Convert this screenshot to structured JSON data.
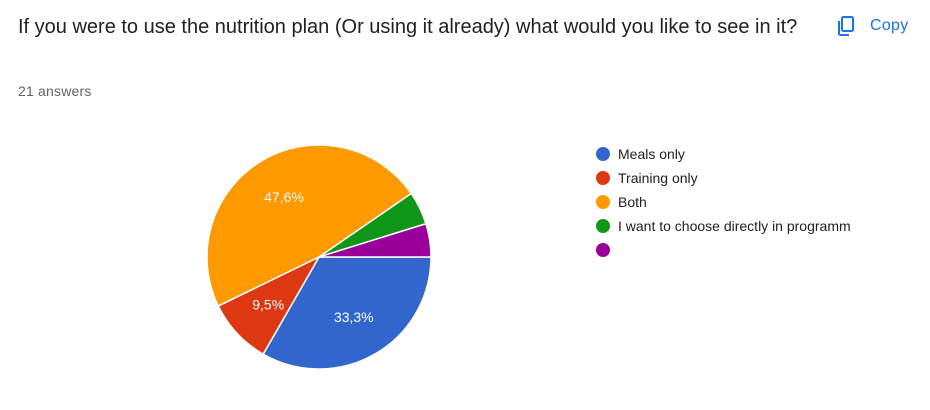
{
  "question": "If you were to use the nutrition plan (Or using it already) what would you like to see in it?",
  "answers_count": "21 answers",
  "copy_button": {
    "label": "Copy",
    "icon": "copy-icon",
    "color": "#1a73e8"
  },
  "chart_data": {
    "type": "pie",
    "title": "",
    "start_angle_deg": 90,
    "direction": "clockwise-from-right",
    "slices": [
      {
        "label": "Meals only",
        "value": 33.3,
        "display": "33,3%",
        "color": "#3366cc"
      },
      {
        "label": "Training only",
        "value": 9.5,
        "display": "9,5%",
        "color": "#dc3912"
      },
      {
        "label": "Both",
        "value": 47.6,
        "display": "47,6%",
        "color": "#ff9900"
      },
      {
        "label": "I want to choose directly in programm",
        "value": 4.8,
        "display": "",
        "color": "#109618"
      },
      {
        "label": "",
        "value": 4.8,
        "display": "",
        "color": "#990099"
      }
    ],
    "legend_position": "right"
  }
}
